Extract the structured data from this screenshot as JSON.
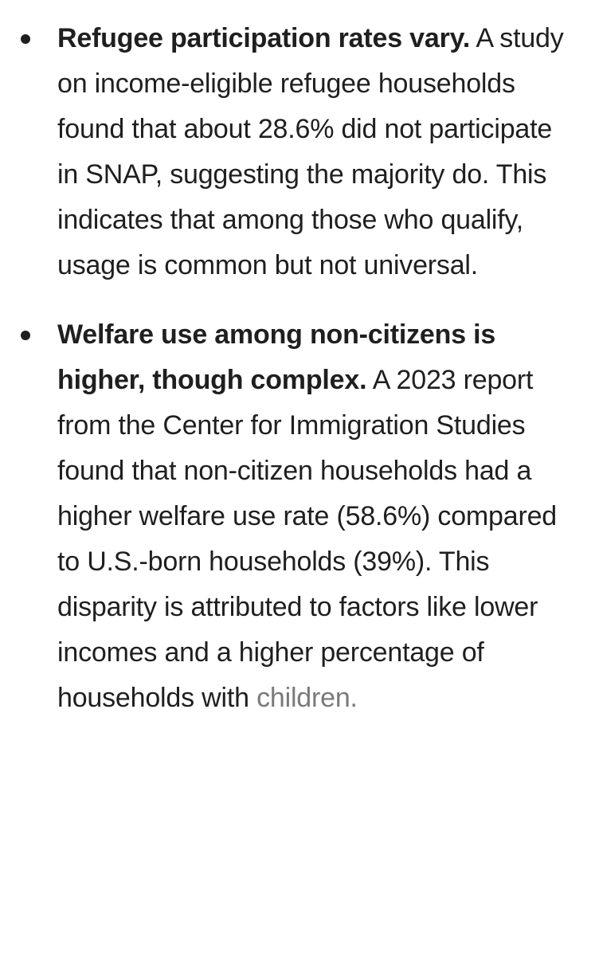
{
  "bullets": [
    {
      "lead": "Refugee participation rates vary.",
      "body": "A study on income-eligible refugee households found that about 28.6% did not participate in SNAP, suggesting the majority do. This indicates that among those who qualify, usage is common but not universal.",
      "faded_tail": ""
    },
    {
      "lead": "Welfare use among non-citizens is higher, though complex.",
      "body": "A 2023 report from the Center for Immigration Studies found that non-citizen households had a higher welfare use rate (58.6%) compared to U.S.-born households (39%). This disparity is attributed to factors like lower incomes and a higher percentage of households with",
      "faded_tail": "children."
    }
  ]
}
